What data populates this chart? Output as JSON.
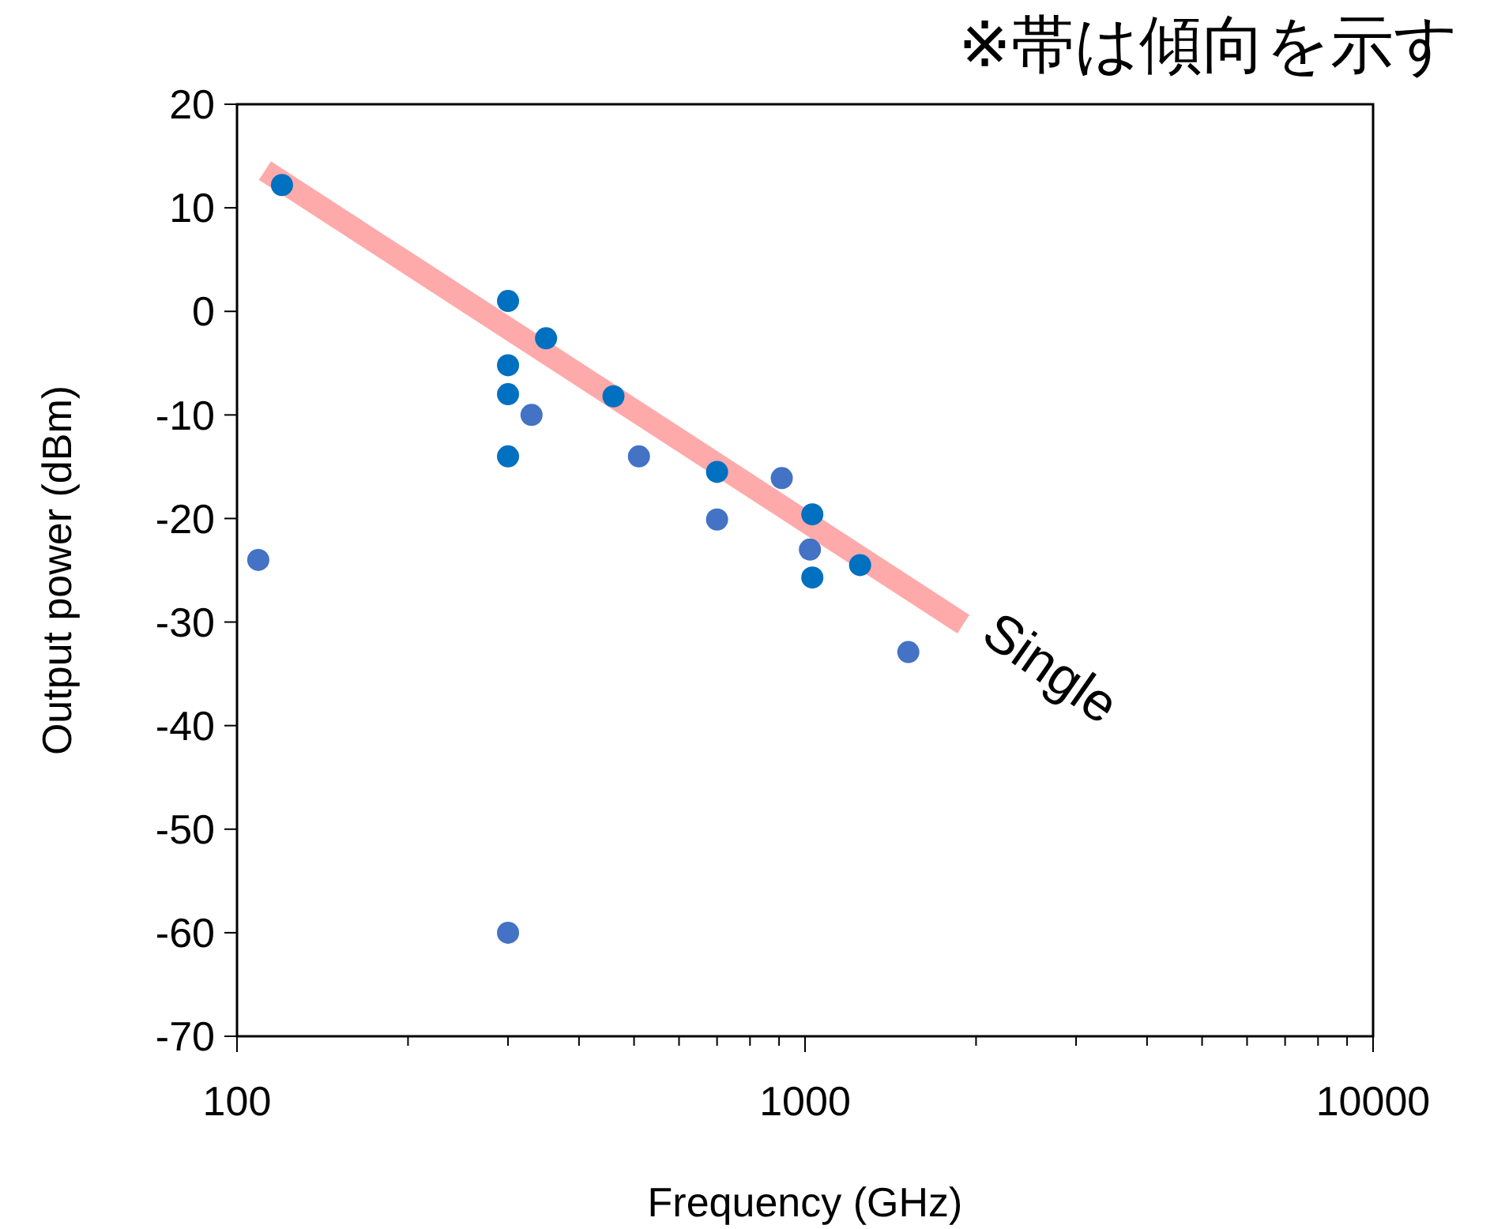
{
  "chart_data": {
    "type": "scatter",
    "xlabel": "Frequency (GHz)",
    "ylabel": "Output power (dBm)",
    "log": "x",
    "xlim": [
      100,
      10000
    ],
    "ylim": [
      -70,
      20
    ],
    "xticks": [
      100,
      {
        "value": 200,
        "label": null
      },
      {
        "value": 300,
        "label": null
      },
      {
        "value": 400,
        "label": null
      },
      {
        "value": 500,
        "label": null
      },
      {
        "value": 600,
        "label": null
      },
      {
        "value": 700,
        "label": null
      },
      {
        "value": 800,
        "label": null
      },
      {
        "value": 900,
        "label": null
      },
      1000,
      {
        "value": 2000,
        "label": null
      },
      {
        "value": 3000,
        "label": null
      },
      {
        "value": 4000,
        "label": null
      },
      {
        "value": 5000,
        "label": null
      },
      {
        "value": 6000,
        "label": null
      },
      {
        "value": 7000,
        "label": null
      },
      {
        "value": 8000,
        "label": null
      },
      {
        "value": 9000,
        "label": null
      },
      10000
    ],
    "yticks": [
      20,
      10,
      0,
      -10,
      -20,
      -30,
      -40,
      -50,
      -60,
      -70
    ],
    "grid": false,
    "marker": "circle",
    "series": [
      {
        "type": "line",
        "color": "#ffaaaa",
        "x": [
          112,
          1900
        ],
        "values": [
          13.6,
          -30.2
        ],
        "marker": "none"
      },
      {
        "color": "#0070c0",
        "x": [
          120,
          300,
          300,
          300,
          300,
          350,
          460,
          700,
          1030,
          1030,
          1250
        ],
        "values": [
          12.2,
          1,
          -5.2,
          -8,
          -14,
          -2.6,
          -8.2,
          -15.5,
          -19.6,
          -25.7,
          -24.5
        ]
      },
      {
        "color": "#4472c4",
        "x": [
          109,
          300,
          330,
          510,
          700,
          910,
          1020,
          1520
        ],
        "values": [
          -24,
          -60,
          -10,
          -14,
          -20.1,
          -16.1,
          -23,
          -32.9
        ]
      }
    ],
    "annotations": [
      {
        "text": "Single",
        "x": 1900,
        "y": -30.2
      },
      "※帯は傾向を示す"
    ]
  }
}
